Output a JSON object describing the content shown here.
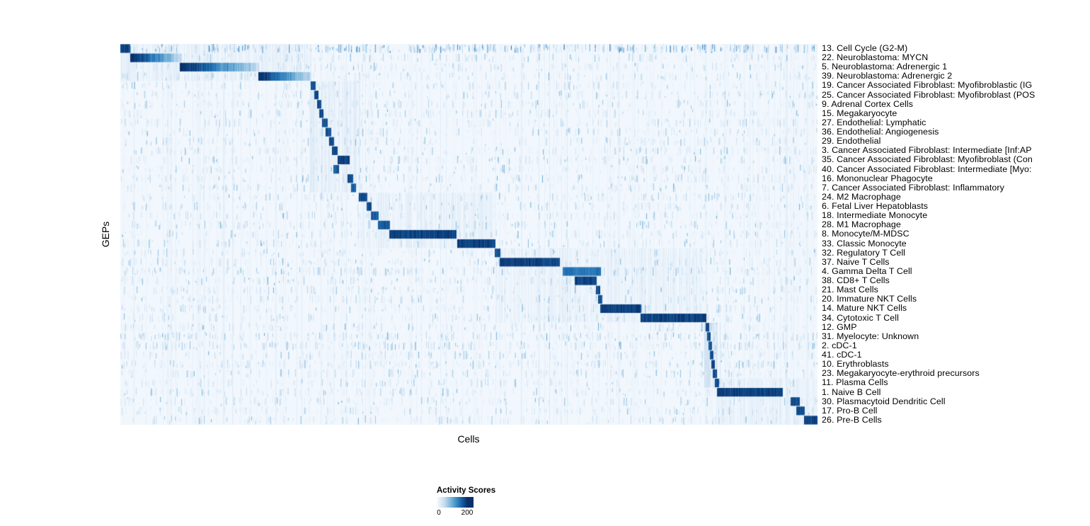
{
  "figure": {
    "y_axis_label": "GEPs",
    "x_axis_label": "Cells"
  },
  "legend": {
    "title": "Activity Scores",
    "min_label": "0",
    "max_label": "200"
  },
  "colors": {
    "page_background": "#ffffff",
    "heatmap_background": "#f2f7fc",
    "scale_stops": [
      "#f7fbff",
      "#c6dbef",
      "#6baed6",
      "#2171b5",
      "#08306b"
    ]
  },
  "chart_data": {
    "type": "heatmap",
    "title": "",
    "xlabel": "Cells",
    "ylabel": "GEPs",
    "value_name": "Activity Scores",
    "value_range": [
      0,
      200
    ],
    "legend_position": "bottom",
    "description": "GEP activity scores per cell; cells ordered so each GEP's high-activity block forms a descending diagonal. Block positions are fractions of the x-axis (cells).",
    "rows": [
      {
        "label": "13. Cell Cycle (G2-M)",
        "block": [
          0.0,
          0.014
        ],
        "intensity": 1.0,
        "fade": false,
        "noise": 0.4,
        "speckle": 0.95
      },
      {
        "label": "22. Neuroblastoma: MYCN",
        "block": [
          0.015,
          0.088
        ],
        "intensity": 1.0,
        "fade": true
      },
      {
        "label": "5. Neuroblastoma: Adrenergic 1",
        "block": [
          0.086,
          0.198
        ],
        "intensity": 1.0,
        "fade": true
      },
      {
        "label": "39. Neuroblastoma: Adrenergic 2",
        "block": [
          0.198,
          0.274
        ],
        "intensity": 1.0,
        "fade": true
      },
      {
        "label": "19. Cancer Associated Fibroblast: Myofibroblastic (IG",
        "block": [
          0.274,
          0.28
        ],
        "intensity": 0.95,
        "fade": false
      },
      {
        "label": "25. Cancer Associated Fibroblast: Myofibroblast (POS",
        "block": [
          0.279,
          0.284
        ],
        "intensity": 0.95,
        "fade": false
      },
      {
        "label": "9. Adrenal Cortex Cells",
        "block": [
          0.283,
          0.288
        ],
        "intensity": 0.95,
        "fade": false
      },
      {
        "label": "15. Megakaryocyte",
        "block": [
          0.286,
          0.291
        ],
        "intensity": 0.95,
        "fade": false
      },
      {
        "label": "27. Endothelial: Lymphatic",
        "block": [
          0.29,
          0.297
        ],
        "intensity": 0.95,
        "fade": false
      },
      {
        "label": "36. Endothelial: Angiogenesis",
        "block": [
          0.295,
          0.302
        ],
        "intensity": 0.95,
        "fade": false
      },
      {
        "label": "29. Endothelial",
        "block": [
          0.3,
          0.306
        ],
        "intensity": 0.95,
        "fade": false
      },
      {
        "label": "3. Cancer Associated Fibroblast: Intermediate [Inf:AP",
        "block": [
          0.304,
          0.311
        ],
        "intensity": 0.95,
        "fade": false
      },
      {
        "label": "35. Cancer Associated Fibroblast: Myofibroblast (Con",
        "block": [
          0.312,
          0.328
        ],
        "intensity": 1.0,
        "fade": false
      },
      {
        "label": "40. Cancer Associated Fibroblast: Intermediate [Myo:",
        "block": [
          0.306,
          0.313
        ],
        "intensity": 0.9,
        "fade": false
      },
      {
        "label": "16. Mononuclear Phagocyte",
        "block": [
          0.326,
          0.333
        ],
        "intensity": 0.95,
        "fade": false
      },
      {
        "label": "7. Cancer Associated Fibroblast: Inflammatory",
        "block": [
          0.331,
          0.338
        ],
        "intensity": 0.9,
        "fade": false
      },
      {
        "label": "24. M2 Macrophage",
        "block": [
          0.343,
          0.354
        ],
        "intensity": 0.95,
        "fade": false
      },
      {
        "label": "6. Fetal Liver Hepatoblasts",
        "block": [
          0.354,
          0.36
        ],
        "intensity": 0.95,
        "fade": false
      },
      {
        "label": "18. Intermediate Monocyte",
        "block": [
          0.36,
          0.37
        ],
        "intensity": 0.9,
        "fade": false
      },
      {
        "label": "28. M1 Macrophage",
        "block": [
          0.37,
          0.386
        ],
        "intensity": 0.9,
        "fade": false
      },
      {
        "label": "8. Monocyte/M-MDSC",
        "block": [
          0.386,
          0.482
        ],
        "intensity": 1.0,
        "fade": false
      },
      {
        "label": "33. Classic Monocyte",
        "block": [
          0.484,
          0.538
        ],
        "intensity": 1.0,
        "fade": false
      },
      {
        "label": "32. Regulatory T Cell",
        "block": [
          0.538,
          0.545
        ],
        "intensity": 0.95,
        "fade": false
      },
      {
        "label": "37. Naive T Cells",
        "block": [
          0.545,
          0.63
        ],
        "intensity": 1.0,
        "fade": false
      },
      {
        "label": "4. Gamma Delta T Cell",
        "block": [
          0.635,
          0.689
        ],
        "intensity": 0.8,
        "fade": false,
        "noise": 0.25
      },
      {
        "label": "38. CD8+ T Cells",
        "block": [
          0.652,
          0.683
        ],
        "intensity": 1.0,
        "fade": false
      },
      {
        "label": "21. Mast Cells",
        "block": [
          0.683,
          0.688
        ],
        "intensity": 0.95,
        "fade": false
      },
      {
        "label": "20. Immature NKT Cells",
        "block": [
          0.686,
          0.691
        ],
        "intensity": 0.95,
        "fade": false
      },
      {
        "label": "14. Mature NKT Cells",
        "block": [
          0.689,
          0.747
        ],
        "intensity": 1.0,
        "fade": false
      },
      {
        "label": "34. Cytotoxic T Cell",
        "block": [
          0.747,
          0.84
        ],
        "intensity": 1.0,
        "fade": false
      },
      {
        "label": "12. GMP",
        "block": [
          0.84,
          0.844
        ],
        "intensity": 0.95,
        "fade": false
      },
      {
        "label": "31. Myelocyte: Unknown",
        "block": [
          0.842,
          0.846
        ],
        "intensity": 0.95,
        "fade": false,
        "noise": 0.25
      },
      {
        "label": "2. cDC-1",
        "block": [
          0.844,
          0.848
        ],
        "intensity": 0.95,
        "fade": false,
        "noise": 0.25
      },
      {
        "label": "41. cDC-1",
        "block": [
          0.846,
          0.85
        ],
        "intensity": 0.95,
        "fade": false
      },
      {
        "label": "10. Erythroblasts",
        "block": [
          0.848,
          0.852
        ],
        "intensity": 0.95,
        "fade": false,
        "noise": 0.25
      },
      {
        "label": "23. Megakaryocyte-erythroid precursors",
        "block": [
          0.85,
          0.855
        ],
        "intensity": 0.95,
        "fade": false
      },
      {
        "label": "11. Plasma Cells",
        "block": [
          0.853,
          0.858
        ],
        "intensity": 0.95,
        "fade": false
      },
      {
        "label": "1. Naive B Cell",
        "block": [
          0.856,
          0.95
        ],
        "intensity": 1.0,
        "fade": false
      },
      {
        "label": "30. Plasmacytoid Dendritic Cell",
        "block": [
          0.962,
          0.974
        ],
        "intensity": 0.95,
        "fade": false
      },
      {
        "label": "17. Pro-B Cell",
        "block": [
          0.97,
          0.981
        ],
        "intensity": 0.95,
        "fade": false
      },
      {
        "label": "26. Pre-B Cells",
        "block": [
          0.981,
          1.0
        ],
        "intensity": 1.0,
        "fade": false
      }
    ],
    "family_regions": [
      {
        "rows": [
          0,
          3
        ],
        "x": [
          0.0,
          0.275
        ],
        "t": 0.1
      },
      {
        "rows": [
          4,
          15
        ],
        "x": [
          0.272,
          0.345
        ],
        "t": 0.12
      },
      {
        "rows": [
          16,
          21
        ],
        "x": [
          0.34,
          0.54
        ],
        "t": 0.1
      },
      {
        "rows": [
          22,
          29
        ],
        "x": [
          0.54,
          0.842
        ],
        "t": 0.09
      },
      {
        "rows": [
          30,
          36
        ],
        "x": [
          0.838,
          0.862
        ],
        "t": 0.18
      },
      {
        "rows": [
          36,
          40
        ],
        "x": [
          0.855,
          1.0
        ],
        "t": 0.1
      }
    ]
  }
}
